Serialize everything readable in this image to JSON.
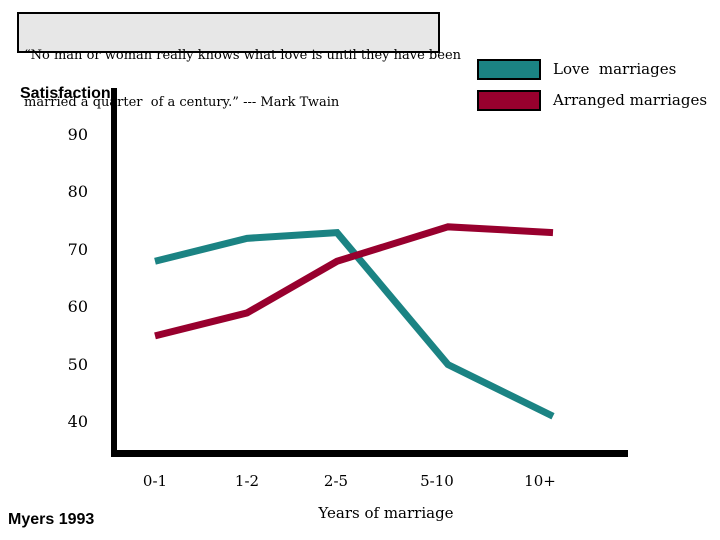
{
  "quote_box": {
    "line1": "“No man or woman really knows what love is until they have been",
    "line2": "married a quarter  of a century.” --- Mark Twain"
  },
  "legend": {
    "items": [
      {
        "label": "Love  marriages",
        "color": "#1b8383"
      },
      {
        "label": "Arranged marriages",
        "color": "#98002e"
      }
    ]
  },
  "axis": {
    "y_label": "Satisfaction",
    "x_label": "Years of marriage"
  },
  "source": "Myers 1993",
  "chart_data": {
    "type": "line",
    "categories": [
      "0-1",
      "1-2",
      "2-5",
      "5-10",
      "10+"
    ],
    "series": [
      {
        "name": "Love marriages",
        "color": "#1b8383",
        "values": [
          68,
          72,
          73,
          50,
          41
        ]
      },
      {
        "name": "Arranged marriages",
        "color": "#98002e",
        "values": [
          55,
          59,
          68,
          74,
          73
        ]
      }
    ],
    "title": "",
    "xlabel": "Years of marriage",
    "ylabel": "Satisfaction",
    "yticks": [
      90,
      80,
      70,
      60,
      50,
      40
    ],
    "ylim": [
      33,
      98
    ],
    "grid": false,
    "legend_position": "top-right"
  }
}
